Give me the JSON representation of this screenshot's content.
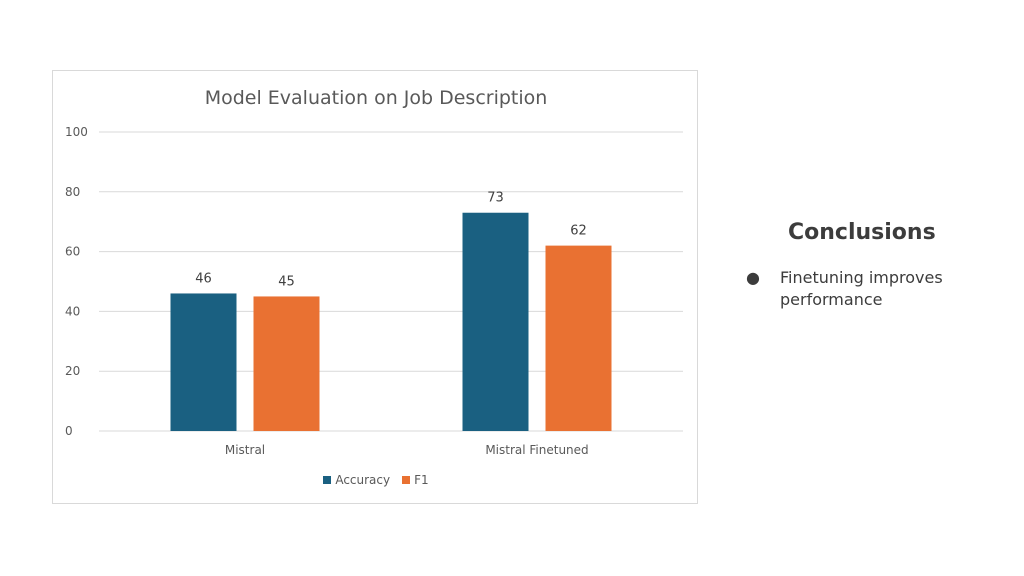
{
  "chart_data": {
    "type": "bar",
    "title": "Model Evaluation on Job Description",
    "categories": [
      "Mistral",
      "Mistral Finetuned"
    ],
    "series": [
      {
        "name": "Accuracy",
        "values": [
          46,
          73
        ],
        "color": "#1a6081"
      },
      {
        "name": "F1",
        "values": [
          45,
          62
        ],
        "color": "#e97132"
      }
    ],
    "ylim": [
      0,
      100
    ],
    "yticks": [
      "0",
      "20",
      "40",
      "60",
      "80",
      "100"
    ],
    "ytick_values": [
      0,
      20,
      40,
      60,
      80,
      100
    ],
    "grid": true,
    "legend_position": "bottom",
    "xlabel": "",
    "ylabel": ""
  },
  "conclusions": {
    "title": "Conclusions",
    "bullet_symbol": "●",
    "items": [
      "Finetuning improves performance"
    ]
  },
  "colors": {
    "gridline": "#d9d9d9",
    "text": "#595959"
  }
}
